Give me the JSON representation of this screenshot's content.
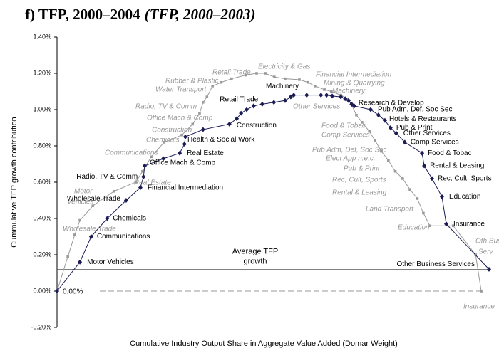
{
  "chart_data": {
    "type": "line",
    "title": "f) TFP, 2000–2004",
    "subtitle": "(TFP, 2000–2003)",
    "y_label": "Cummulative TFP growth contribution",
    "x_label": "Cumulative Industry Output Share in Aggregate Value Added (Domar Weight)",
    "xlim": [
      0,
      100
    ],
    "ylim": [
      -0.2,
      1.4
    ],
    "yticks": [
      {
        "value": -0.2,
        "label": "-0.20%"
      },
      {
        "value": 0,
        "label": "0.00%"
      },
      {
        "value": 0.2,
        "label": "0.20%"
      },
      {
        "value": 0.4,
        "label": "0.40%"
      },
      {
        "value": 0.6,
        "label": "0.60%"
      },
      {
        "value": 0.8,
        "label": "0.80%"
      },
      {
        "value": 1.0,
        "label": "1.00%"
      },
      {
        "value": 1.2,
        "label": "1.20%"
      },
      {
        "value": 1.4,
        "label": "1.40%"
      }
    ],
    "series": [
      {
        "color": "#1c1c55",
        "marker": "diamond",
        "x": [
          0,
          5.3,
          7.9,
          11.6,
          16.0,
          19.3,
          20.0,
          20.3,
          24.6,
          28.4,
          29.5,
          29.7,
          33.8,
          39.9,
          41.6,
          42.6,
          43.9,
          45.5,
          47.5,
          50.2,
          52.8,
          54.1,
          54.8,
          57.8,
          61.1,
          62.4,
          63.7,
          65.7,
          66.7,
          67.5,
          68.2,
          68.8,
          72.6,
          74.4,
          75.9,
          77.2,
          78.5,
          80.5,
          84.5,
          85.0,
          86.8,
          89.1,
          90.1,
          100
        ],
        "values": [
          0,
          0.16,
          0.3,
          0.4,
          0.5,
          0.57,
          0.63,
          0.69,
          0.73,
          0.76,
          0.81,
          0.85,
          0.89,
          0.92,
          0.95,
          0.98,
          1.0,
          1.02,
          1.03,
          1.04,
          1.05,
          1.07,
          1.08,
          1.08,
          1.08,
          1.08,
          1.075,
          1.07,
          1.06,
          1.05,
          1.03,
          1.02,
          1.0,
          0.97,
          0.94,
          0.9,
          0.87,
          0.82,
          0.76,
          0.69,
          0.62,
          0.52,
          0.37,
          0.12
        ]
      },
      {
        "color": "#9a9a9a",
        "marker": "square",
        "x": [
          0,
          2.5,
          4.1,
          5.3,
          8.3,
          13.2,
          18.2,
          19.8,
          21.8,
          24.8,
          28.9,
          31.4,
          33.0,
          33.8,
          34.7,
          36.0,
          38.0,
          40.4,
          43.7,
          46.2,
          48.2,
          50.3,
          52.8,
          56.1,
          58.1,
          59.7,
          61.9,
          63.5,
          65.7,
          67.3,
          68.3,
          69.3,
          70.6,
          72.3,
          73.6,
          75.1,
          76.7,
          78.3,
          80.0,
          81.7,
          83.4,
          84.8,
          86.3,
          91.7,
          96.9,
          98.2
        ],
        "values": [
          0,
          0.19,
          0.31,
          0.39,
          0.47,
          0.55,
          0.6,
          0.66,
          0.74,
          0.82,
          0.86,
          0.92,
          0.98,
          1.04,
          1.07,
          1.13,
          1.15,
          1.17,
          1.19,
          1.2,
          1.2,
          1.18,
          1.17,
          1.165,
          1.15,
          1.13,
          1.11,
          1.1,
          1.08,
          1.06,
          1.02,
          0.97,
          0.93,
          0.88,
          0.83,
          0.77,
          0.72,
          0.66,
          0.62,
          0.56,
          0.51,
          0.43,
          0.36,
          0.36,
          0.2,
          0
        ]
      }
    ],
    "average": 0.12,
    "average_label": [
      "Average TFP",
      "growth"
    ],
    "zero_label": "0.00%",
    "annotations": [
      "Motor Vehicles",
      "Communications",
      "Chemicals",
      "Wholesale Trade",
      "Financial Intermediation",
      "Radio, TV & Comm",
      "Office Mach & Comp",
      "Real Estate",
      "Health & Social Work",
      "Construction",
      "Retail Trade",
      "Machinery",
      "Research  & Develop",
      "Pub Adm, Def, Soc Sec",
      "Hotels & Restaurants",
      "Pub & Print",
      "Other Services",
      "Comp Services",
      "Food & Tobac",
      "Rental & Leasing",
      "Rec, Cult, Sports",
      "Education",
      "Insurance",
      "Other Business Services"
    ],
    "comparison_annotations": [
      "Wholesale Trade",
      "Motor",
      "Vehicles",
      "Real Estate",
      "Communications",
      "Chemicals",
      "Construction",
      "Office Mach & Comp",
      "Radio, TV & Comm",
      "Water Transport",
      "Rubber & Plastic",
      "Retail Trade",
      "Electricity & Gas",
      "Financial Intermediation",
      "Mining & Quarrying",
      "Machinery",
      "Other Services",
      "Food & Tobac",
      "Comp Services",
      "Pub Adm, Def, Soc Sec",
      "Elect App n.e.c.",
      "Pub & Print",
      "Rec, Cult, Sports",
      "Rental & Leasing",
      "Land Transport",
      "Education",
      "Oth Bus",
      "Serv",
      "Insurance"
    ]
  }
}
